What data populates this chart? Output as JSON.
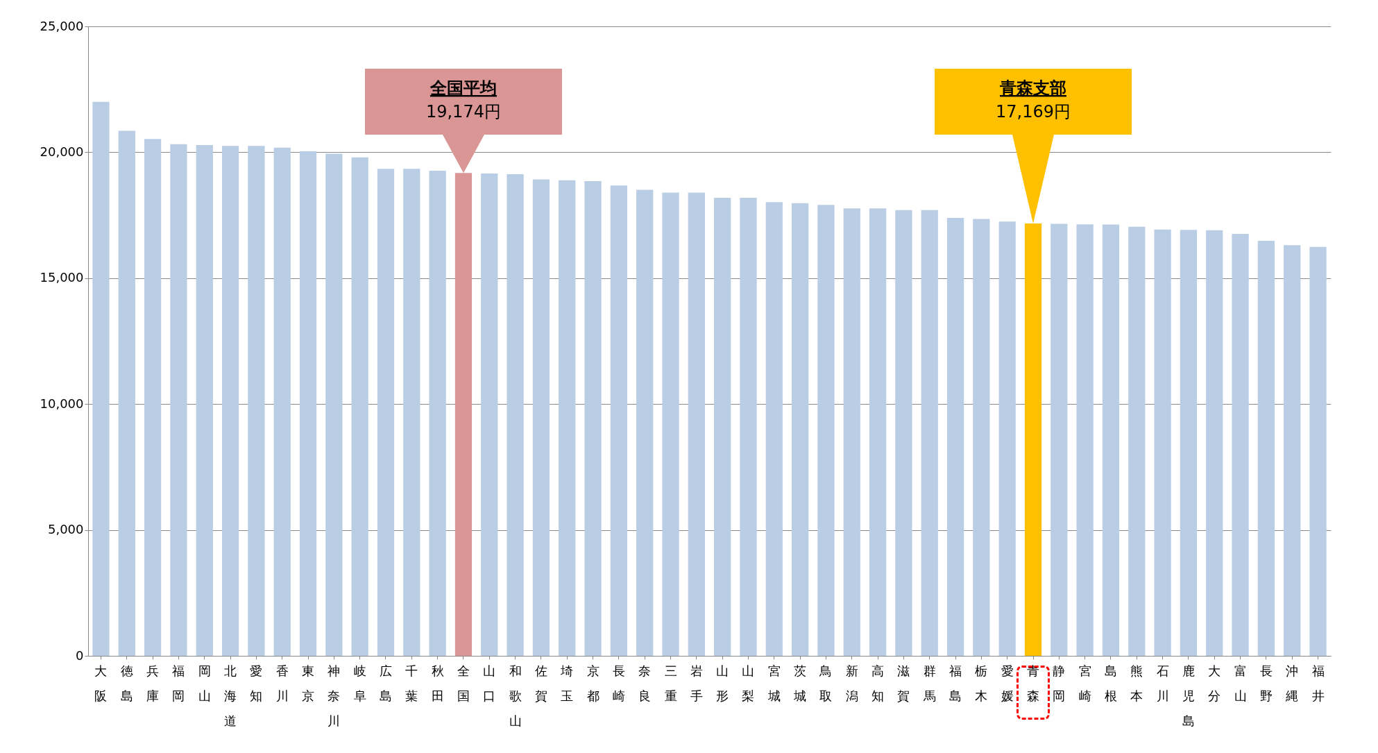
{
  "chart_data": {
    "type": "bar",
    "categories": [
      "大阪",
      "徳島",
      "兵庫",
      "福岡",
      "岡山",
      "北海道",
      "愛知",
      "香川",
      "東京",
      "神奈川",
      "岐阜",
      "広島",
      "千葉",
      "秋田",
      "全国",
      "山口",
      "和歌山",
      "佐賀",
      "埼玉",
      "京都",
      "長崎",
      "奈良",
      "三重",
      "岩手",
      "山形",
      "山梨",
      "宮城",
      "茨城",
      "鳥取",
      "新潟",
      "高知",
      "滋賀",
      "群馬",
      "福島",
      "栃木",
      "愛媛",
      "青森",
      "静岡",
      "宮崎",
      "島根",
      "熊本",
      "石川",
      "鹿児島",
      "大分",
      "富山",
      "長野",
      "沖縄",
      "福井"
    ],
    "values": [
      22000,
      20850,
      20530,
      20320,
      20290,
      20250,
      20250,
      20180,
      20040,
      19940,
      19800,
      19340,
      19340,
      19270,
      19174,
      19160,
      19130,
      18920,
      18890,
      18850,
      18680,
      18510,
      18400,
      18400,
      18190,
      18190,
      18020,
      17980,
      17910,
      17770,
      17770,
      17700,
      17700,
      17390,
      17350,
      17250,
      17169,
      17160,
      17140,
      17130,
      17040,
      16930,
      16920,
      16900,
      16760,
      16480,
      16310,
      16240
    ],
    "colors": [
      "#b9cde5",
      "#b9cde5",
      "#b9cde5",
      "#b9cde5",
      "#b9cde5",
      "#b9cde5",
      "#b9cde5",
      "#b9cde5",
      "#b9cde5",
      "#b9cde5",
      "#b9cde5",
      "#b9cde5",
      "#b9cde5",
      "#b9cde5",
      "#d99694",
      "#b9cde5",
      "#b9cde5",
      "#b9cde5",
      "#b9cde5",
      "#b9cde5",
      "#b9cde5",
      "#b9cde5",
      "#b9cde5",
      "#b9cde5",
      "#b9cde5",
      "#b9cde5",
      "#b9cde5",
      "#b9cde5",
      "#b9cde5",
      "#b9cde5",
      "#b9cde5",
      "#b9cde5",
      "#b9cde5",
      "#b9cde5",
      "#b9cde5",
      "#b9cde5",
      "#ffc000",
      "#b9cde5",
      "#b9cde5",
      "#b9cde5",
      "#b9cde5",
      "#b9cde5",
      "#b9cde5",
      "#b9cde5",
      "#b9cde5",
      "#b9cde5",
      "#b9cde5",
      "#b9cde5"
    ],
    "ylim": [
      0,
      25000
    ],
    "yticks": [
      0,
      {
        "value": 5000,
        "label": "5,000"
      },
      {
        "value": 10000,
        "label": "10,000"
      },
      {
        "value": 15000,
        "label": "15,000"
      },
      {
        "value": 20000,
        "label": "20,000"
      },
      {
        "value": 25000,
        "label": "25,000"
      }
    ],
    "grid": "y",
    "annotations": [
      "全国平均",
      "19,174円",
      "青森支部",
      "17,169円"
    ]
  }
}
